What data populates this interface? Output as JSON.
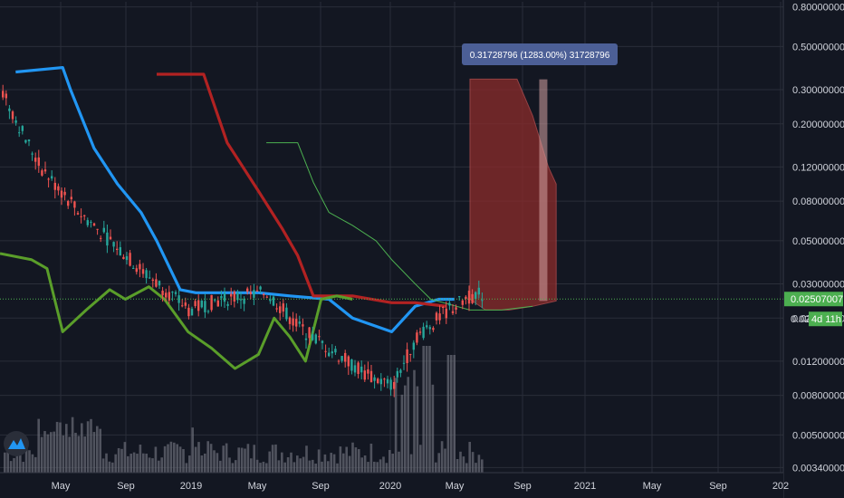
{
  "chart_data": {
    "type": "candlestick",
    "scale": "log",
    "ylim": [
      0.0032,
      0.85
    ],
    "y_ticks": [
      "0.80000000",
      "0.50000000",
      "0.30000000",
      "0.20000000",
      "0.12000000",
      "0.08000000",
      "0.05000000",
      "0.03000000",
      "0.02000000",
      "0.01200000",
      "0.00800000",
      "0.00500000",
      "0.00340000"
    ],
    "x_ticks": [
      "May",
      "Sep",
      "2019",
      "May",
      "Sep",
      "2020",
      "May",
      "Sep",
      "2021",
      "May",
      "Sep",
      "202"
    ],
    "grid": true,
    "last_price": "0.02507007",
    "last_price_value": 0.02507007,
    "countdown_price": "0.02",
    "countdown": "4d 11h",
    "measure_label": "0.31728796 (1283.00%) 31728796",
    "measure_range": [
      0.0245,
      0.339
    ],
    "colors": {
      "background": "#131722",
      "grid": "#2a2e39",
      "up": "#26a69a",
      "down": "#ef5350",
      "blue_line": "#2196f3",
      "red_line": "#b22222",
      "green_thick": "#5a9e2a",
      "green_thin": "#4caf50",
      "measure_box": "#4c5f96",
      "last_price": "#4caf50"
    },
    "series": [
      {
        "style": "blue-step-line",
        "points": [
          [
            0.02,
            0.37
          ],
          [
            0.08,
            0.39
          ],
          [
            0.09,
            0.3
          ],
          [
            0.12,
            0.15
          ],
          [
            0.15,
            0.098
          ],
          [
            0.18,
            0.07
          ],
          [
            0.2,
            0.05
          ],
          [
            0.23,
            0.028
          ],
          [
            0.25,
            0.027
          ],
          [
            0.33,
            0.027
          ],
          [
            0.37,
            0.026
          ],
          [
            0.42,
            0.025
          ],
          [
            0.45,
            0.02
          ],
          [
            0.5,
            0.017
          ],
          [
            0.53,
            0.023
          ],
          [
            0.56,
            0.025
          ],
          [
            0.58,
            0.025
          ]
        ]
      },
      {
        "style": "red-step-line",
        "points": [
          [
            0.2,
            0.36
          ],
          [
            0.26,
            0.36
          ],
          [
            0.29,
            0.16
          ],
          [
            0.33,
            0.09
          ],
          [
            0.36,
            0.058
          ],
          [
            0.38,
            0.042
          ],
          [
            0.4,
            0.026
          ],
          [
            0.45,
            0.026
          ],
          [
            0.5,
            0.024
          ],
          [
            0.53,
            0.024
          ],
          [
            0.57,
            0.023
          ]
        ]
      },
      {
        "style": "green-thick-line",
        "points": [
          [
            0.0,
            0.043
          ],
          [
            0.04,
            0.04
          ],
          [
            0.06,
            0.036
          ],
          [
            0.08,
            0.017
          ],
          [
            0.11,
            0.022
          ],
          [
            0.14,
            0.028
          ],
          [
            0.16,
            0.025
          ],
          [
            0.19,
            0.029
          ],
          [
            0.21,
            0.025
          ],
          [
            0.24,
            0.017
          ],
          [
            0.27,
            0.014
          ],
          [
            0.3,
            0.011
          ],
          [
            0.33,
            0.013
          ],
          [
            0.35,
            0.02
          ],
          [
            0.37,
            0.016
          ],
          [
            0.39,
            0.012
          ],
          [
            0.41,
            0.025
          ],
          [
            0.43,
            0.026
          ],
          [
            0.45,
            0.025
          ]
        ]
      },
      {
        "style": "green-thin-line",
        "points": [
          [
            0.34,
            0.16
          ],
          [
            0.38,
            0.16
          ],
          [
            0.4,
            0.1
          ],
          [
            0.42,
            0.07
          ],
          [
            0.45,
            0.06
          ],
          [
            0.48,
            0.05
          ],
          [
            0.5,
            0.04
          ],
          [
            0.53,
            0.03
          ],
          [
            0.55,
            0.025
          ],
          [
            0.6,
            0.022
          ],
          [
            0.64,
            0.022
          ],
          [
            0.68,
            0.023
          ]
        ]
      }
    ],
    "cloud": {
      "upper": [
        [
          0.6,
          0.34
        ],
        [
          0.66,
          0.34
        ],
        [
          0.68,
          0.22
        ],
        [
          0.7,
          0.12
        ],
        [
          0.71,
          0.098
        ]
      ],
      "lower": [
        [
          0.6,
          0.025
        ],
        [
          0.62,
          0.022
        ],
        [
          0.65,
          0.022
        ],
        [
          0.68,
          0.023
        ],
        [
          0.71,
          0.0245
        ]
      ]
    }
  },
  "watermark": {
    "icon": "tradingview-logo-icon"
  }
}
